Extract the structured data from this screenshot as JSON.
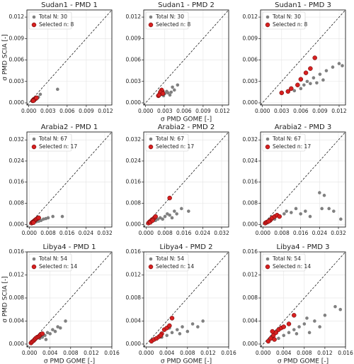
{
  "chart_data": [
    {
      "type": "scatter",
      "title": "Sudan1 - PMD 1",
      "y_label": "σ PMD SCIA [-]",
      "xlim": [
        -0.0003,
        0.013
      ],
      "ylim": [
        -0.0003,
        0.013
      ],
      "xticks": [
        {
          "value": 0,
          "label": "0.000"
        },
        {
          "value": 0.003,
          "label": "0.003"
        },
        {
          "value": 0.006,
          "label": "0.006"
        },
        {
          "value": 0.009,
          "label": "0.009"
        },
        {
          "value": 0.012,
          "label": "0.012"
        }
      ],
      "yticks": [
        {
          "value": 0,
          "label": "0.000"
        },
        {
          "value": 0.003,
          "label": "0.003"
        },
        {
          "value": 0.006,
          "label": "0.006"
        },
        {
          "value": 0.009,
          "label": "0.009"
        },
        {
          "value": 0.012,
          "label": "0.012"
        }
      ],
      "grid": true,
      "series": [
        {
          "name": "Total N: 30",
          "color": "#808080",
          "x": [
            0.0008,
            0.001,
            0.0012,
            0.0015,
            0.0018,
            0.0045,
            0.0009,
            0.0014
          ],
          "y": [
            0.0004,
            0.0005,
            0.0006,
            0.0008,
            0.0012,
            0.0019,
            0.0003,
            0.0007
          ]
        },
        {
          "name": "Selected n: 8",
          "color": "#d62020",
          "x": [
            0.0006,
            0.0007,
            0.0008,
            0.0009,
            0.001,
            0.0011,
            0.0012,
            0.0007
          ],
          "y": [
            0.0003,
            0.0004,
            0.0005,
            0.0005,
            0.0006,
            0.0006,
            0.0007,
            0.0003
          ]
        }
      ]
    },
    {
      "type": "scatter",
      "title": "Sudan1 - PMD 2",
      "x_label": "σ PMD GOME [-]",
      "xlim": [
        -0.0003,
        0.013
      ],
      "ylim": [
        -0.0003,
        0.013
      ],
      "xticks": [
        {
          "value": 0,
          "label": "0.000"
        },
        {
          "value": 0.003,
          "label": "0.003"
        },
        {
          "value": 0.006,
          "label": "0.006"
        },
        {
          "value": 0.009,
          "label": "0.009"
        },
        {
          "value": 0.012,
          "label": "0.012"
        }
      ],
      "yticks": [
        {
          "value": 0,
          "label": "0.000"
        },
        {
          "value": 0.003,
          "label": "0.003"
        },
        {
          "value": 0.006,
          "label": "0.006"
        },
        {
          "value": 0.009,
          "label": "0.009"
        },
        {
          "value": 0.012,
          "label": "0.012"
        }
      ],
      "grid": true,
      "series": [
        {
          "name": "Total N: 30",
          "color": "#808080",
          "x": [
            0.0025,
            0.003,
            0.0035,
            0.004,
            0.0045,
            0.0042,
            0.005,
            0.0038,
            0.0028,
            0.0033
          ],
          "y": [
            0.0012,
            0.0013,
            0.0014,
            0.0015,
            0.0018,
            0.0022,
            0.0025,
            0.0011,
            0.001,
            0.0016
          ]
        },
        {
          "name": "Selected n: 8",
          "color": "#d62020",
          "x": [
            0.002,
            0.0022,
            0.0024,
            0.0026,
            0.0025,
            0.0023,
            0.0021,
            0.0027
          ],
          "y": [
            0.001,
            0.0012,
            0.0014,
            0.0016,
            0.0018,
            0.0015,
            0.0011,
            0.0013
          ]
        }
      ]
    },
    {
      "type": "scatter",
      "title": "Sudan1 - PMD 3",
      "xlim": [
        -0.0003,
        0.013
      ],
      "ylim": [
        -0.0003,
        0.013
      ],
      "xticks": [
        {
          "value": 0,
          "label": "0.000"
        },
        {
          "value": 0.003,
          "label": "0.003"
        },
        {
          "value": 0.006,
          "label": "0.006"
        },
        {
          "value": 0.009,
          "label": "0.009"
        },
        {
          "value": 0.012,
          "label": "0.012"
        }
      ],
      "yticks": [
        {
          "value": 0,
          "label": "0.000"
        },
        {
          "value": 0.003,
          "label": "0.003"
        },
        {
          "value": 0.006,
          "label": "0.006"
        },
        {
          "value": 0.009,
          "label": "0.009"
        },
        {
          "value": 0.012,
          "label": "0.012"
        }
      ],
      "grid": true,
      "series": [
        {
          "name": "Total N: 30",
          "color": "#808080",
          "x": [
            0.005,
            0.006,
            0.0065,
            0.007,
            0.008,
            0.009,
            0.0095,
            0.01,
            0.011,
            0.012,
            0.0125,
            0.0085,
            0.0075
          ],
          "y": [
            0.0017,
            0.002,
            0.0025,
            0.003,
            0.0035,
            0.004,
            0.0032,
            0.0045,
            0.005,
            0.0055,
            0.0052,
            0.0028,
            0.0027
          ]
        },
        {
          "name": "Selected n: 8",
          "color": "#d62020",
          "x": [
            0.003,
            0.004,
            0.0045,
            0.0055,
            0.006,
            0.0068,
            0.0075,
            0.0082
          ],
          "y": [
            0.0014,
            0.0016,
            0.002,
            0.0025,
            0.0033,
            0.0042,
            0.0048,
            0.0063
          ]
        }
      ]
    },
    {
      "type": "scatter",
      "title": "Arabia2 - PMD 1",
      "xlim": [
        -0.001,
        0.035
      ],
      "ylim": [
        -0.001,
        0.035
      ],
      "xticks": [
        {
          "value": 0,
          "label": "0.000"
        },
        {
          "value": 0.008,
          "label": "0.008"
        },
        {
          "value": 0.016,
          "label": "0.016"
        },
        {
          "value": 0.024,
          "label": "0.024"
        },
        {
          "value": 0.032,
          "label": "0.032"
        }
      ],
      "yticks": [
        {
          "value": 0,
          "label": "0.000"
        },
        {
          "value": 0.008,
          "label": "0.008"
        },
        {
          "value": 0.016,
          "label": "0.016"
        },
        {
          "value": 0.024,
          "label": "0.024"
        },
        {
          "value": 0.032,
          "label": "0.032"
        }
      ],
      "grid": true,
      "series": [
        {
          "name": "Total N: 67",
          "color": "#808080",
          "x": [
            0.003,
            0.005,
            0.006,
            0.008,
            0.01,
            0.014,
            0.004,
            0.007
          ],
          "y": [
            0.001,
            0.0015,
            0.002,
            0.0025,
            0.003,
            0.003,
            0.0012,
            0.0022
          ]
        },
        {
          "name": "Selected n: 17",
          "color": "#d62020",
          "x": [
            0.001,
            0.0013,
            0.0016,
            0.002,
            0.0023,
            0.0026,
            0.003,
            0.0035,
            0.004,
            0.0018
          ],
          "y": [
            0.0005,
            0.0008,
            0.001,
            0.0012,
            0.0015,
            0.0017,
            0.002,
            0.0023,
            0.0025,
            0.0007
          ]
        }
      ]
    },
    {
      "type": "scatter",
      "title": "Arabia2 - PMD 2",
      "xlim": [
        -0.001,
        0.035
      ],
      "ylim": [
        -0.001,
        0.035
      ],
      "xticks": [
        {
          "value": 0,
          "label": "0.000"
        },
        {
          "value": 0.008,
          "label": "0.008"
        },
        {
          "value": 0.016,
          "label": "0.016"
        },
        {
          "value": 0.024,
          "label": "0.024"
        },
        {
          "value": 0.032,
          "label": "0.032"
        }
      ],
      "yticks": [
        {
          "value": 0,
          "label": "0.000"
        },
        {
          "value": 0.008,
          "label": "0.008"
        },
        {
          "value": 0.016,
          "label": "0.016"
        },
        {
          "value": 0.024,
          "label": "0.024"
        },
        {
          "value": 0.032,
          "label": "0.032"
        }
      ],
      "grid": true,
      "series": [
        {
          "name": "Total N: 67",
          "color": "#808080",
          "x": [
            0.004,
            0.005,
            0.006,
            0.007,
            0.008,
            0.009,
            0.01,
            0.012,
            0.013,
            0.015,
            0.018,
            0.011
          ],
          "y": [
            0.0015,
            0.002,
            0.0025,
            0.002,
            0.003,
            0.004,
            0.0035,
            0.005,
            0.004,
            0.006,
            0.005,
            0.0025
          ]
        },
        {
          "name": "Selected n: 17",
          "color": "#d62020",
          "x": [
            0.001,
            0.0015,
            0.002,
            0.0025,
            0.003,
            0.0035,
            0.004,
            0.0018,
            0.0028,
            0.01
          ],
          "y": [
            0.0005,
            0.001,
            0.0013,
            0.0018,
            0.002,
            0.0025,
            0.003,
            0.0008,
            0.0015,
            0.01
          ]
        }
      ]
    },
    {
      "type": "scatter",
      "title": "Arabia2 - PMD 3",
      "xlim": [
        -0.001,
        0.035
      ],
      "ylim": [
        -0.001,
        0.035
      ],
      "xticks": [
        {
          "value": 0,
          "label": "0.000"
        },
        {
          "value": 0.008,
          "label": "0.008"
        },
        {
          "value": 0.016,
          "label": "0.016"
        },
        {
          "value": 0.024,
          "label": "0.024"
        },
        {
          "value": 0.032,
          "label": "0.032"
        }
      ],
      "yticks": [
        {
          "value": 0,
          "label": "0.000"
        },
        {
          "value": 0.008,
          "label": "0.008"
        },
        {
          "value": 0.016,
          "label": "0.016"
        },
        {
          "value": 0.024,
          "label": "0.024"
        },
        {
          "value": 0.032,
          "label": "0.032"
        }
      ],
      "grid": true,
      "series": [
        {
          "name": "Total N: 67",
          "color": "#808080",
          "x": [
            0.005,
            0.007,
            0.009,
            0.01,
            0.012,
            0.014,
            0.016,
            0.018,
            0.02,
            0.024,
            0.026,
            0.028,
            0.03,
            0.033,
            0.025
          ],
          "y": [
            0.002,
            0.003,
            0.004,
            0.005,
            0.0045,
            0.006,
            0.004,
            0.005,
            0.003,
            0.012,
            0.011,
            0.006,
            0.005,
            0.002,
            0.006
          ]
        },
        {
          "name": "Selected n: 17",
          "color": "#d62020",
          "x": [
            0.001,
            0.0015,
            0.002,
            0.003,
            0.0035,
            0.004,
            0.005,
            0.006,
            0.007,
            0.0025
          ],
          "y": [
            0.0005,
            0.0008,
            0.001,
            0.0015,
            0.002,
            0.0025,
            0.003,
            0.0035,
            0.003,
            0.0012
          ]
        }
      ]
    },
    {
      "type": "scatter",
      "title": "Libya4 - PMD 1",
      "x_label": "σ PMD GOME [-]",
      "y_label": "σ PMD SCIA [-]",
      "xlim": [
        -0.0005,
        0.016
      ],
      "ylim": [
        -0.0005,
        0.016
      ],
      "xticks": [
        {
          "value": 0,
          "label": "0.000"
        },
        {
          "value": 0.004,
          "label": "0.004"
        },
        {
          "value": 0.008,
          "label": "0.008"
        },
        {
          "value": 0.012,
          "label": "0.012"
        },
        {
          "value": 0.016,
          "label": "0.016"
        }
      ],
      "yticks": [
        {
          "value": 0,
          "label": "0.000"
        },
        {
          "value": 0.004,
          "label": "0.004"
        },
        {
          "value": 0.008,
          "label": "0.008"
        },
        {
          "value": 0.012,
          "label": "0.012"
        },
        {
          "value": 0.016,
          "label": "0.016"
        }
      ],
      "grid": true,
      "series": [
        {
          "name": "Total N: 54",
          "color": "#808080",
          "x": [
            0.002,
            0.0025,
            0.003,
            0.0035,
            0.004,
            0.0045,
            0.005,
            0.0055,
            0.006,
            0.007,
            0.0032
          ],
          "y": [
            0.001,
            0.0012,
            0.0015,
            0.002,
            0.0018,
            0.0025,
            0.0022,
            0.003,
            0.0028,
            0.004,
            0.0008
          ]
        },
        {
          "name": "Selected n: 14",
          "color": "#d62020",
          "x": [
            0.0003,
            0.0005,
            0.0008,
            0.001,
            0.0012,
            0.0015,
            0.0018,
            0.002,
            0.0022,
            0.0025
          ],
          "y": [
            0.0002,
            0.0004,
            0.0006,
            0.0008,
            0.001,
            0.0012,
            0.0013,
            0.0015,
            0.0017,
            0.0018
          ]
        }
      ]
    },
    {
      "type": "scatter",
      "title": "Libya4 - PMD 2",
      "x_label": "σ PMD GOME [-]",
      "xlim": [
        -0.0005,
        0.016
      ],
      "ylim": [
        -0.0005,
        0.016
      ],
      "xticks": [
        {
          "value": 0,
          "label": "0.000"
        },
        {
          "value": 0.004,
          "label": "0.004"
        },
        {
          "value": 0.008,
          "label": "0.008"
        },
        {
          "value": 0.012,
          "label": "0.012"
        },
        {
          "value": 0.016,
          "label": "0.016"
        }
      ],
      "yticks": [
        {
          "value": 0,
          "label": "0.000"
        },
        {
          "value": 0.004,
          "label": "0.004"
        },
        {
          "value": 0.008,
          "label": "0.008"
        },
        {
          "value": 0.012,
          "label": "0.012"
        },
        {
          "value": 0.016,
          "label": "0.016"
        }
      ],
      "grid": true,
      "series": [
        {
          "name": "Total N: 54",
          "color": "#808080",
          "x": [
            0.001,
            0.002,
            0.003,
            0.004,
            0.005,
            0.006,
            0.007,
            0.008,
            0.009,
            0.01,
            0.011,
            0.0065,
            0.0045
          ],
          "y": [
            0.0005,
            0.001,
            0.0012,
            0.0015,
            0.002,
            0.0025,
            0.003,
            0.0022,
            0.0035,
            0.003,
            0.004,
            0.0018,
            0.0028
          ]
        },
        {
          "name": "Selected n: 14",
          "color": "#d62020",
          "x": [
            0.001,
            0.0015,
            0.002,
            0.0025,
            0.003,
            0.0035,
            0.004,
            0.0045,
            0.005,
            0.0028
          ],
          "y": [
            0.0005,
            0.0008,
            0.001,
            0.0013,
            0.0018,
            0.0025,
            0.0028,
            0.0032,
            0.0045,
            0.0015
          ]
        }
      ]
    },
    {
      "type": "scatter",
      "title": "Libya4 - PMD 3",
      "x_label": "σ PMD GOME [-]",
      "xlim": [
        -0.0005,
        0.016
      ],
      "ylim": [
        -0.0005,
        0.016
      ],
      "xticks": [
        {
          "value": 0,
          "label": "0.000"
        },
        {
          "value": 0.004,
          "label": "0.004"
        },
        {
          "value": 0.008,
          "label": "0.008"
        },
        {
          "value": 0.012,
          "label": "0.012"
        },
        {
          "value": 0.016,
          "label": "0.016"
        }
      ],
      "yticks": [
        {
          "value": 0,
          "label": "0.000"
        },
        {
          "value": 0.004,
          "label": "0.004"
        },
        {
          "value": 0.008,
          "label": "0.008"
        },
        {
          "value": 0.012,
          "label": "0.012"
        },
        {
          "value": 0.016,
          "label": "0.016"
        }
      ],
      "grid": true,
      "series": [
        {
          "name": "Total N: 54",
          "color": "#808080",
          "x": [
            0.003,
            0.004,
            0.005,
            0.006,
            0.007,
            0.008,
            0.009,
            0.01,
            0.011,
            0.012,
            0.014,
            0.015,
            0.0085,
            0.0065
          ],
          "y": [
            0.001,
            0.0015,
            0.002,
            0.0025,
            0.003,
            0.0035,
            0.002,
            0.004,
            0.003,
            0.005,
            0.0065,
            0.006,
            0.0045,
            0.0018
          ]
        },
        {
          "name": "Selected n: 14",
          "color": "#d62020",
          "x": [
            0.001,
            0.0015,
            0.002,
            0.0025,
            0.003,
            0.0035,
            0.004,
            0.005,
            0.006,
            0.0022,
            0.0018
          ],
          "y": [
            0.0005,
            0.001,
            0.0015,
            0.002,
            0.0025,
            0.0028,
            0.003,
            0.0035,
            0.005,
            0.0008,
            0.0022
          ]
        }
      ]
    }
  ]
}
